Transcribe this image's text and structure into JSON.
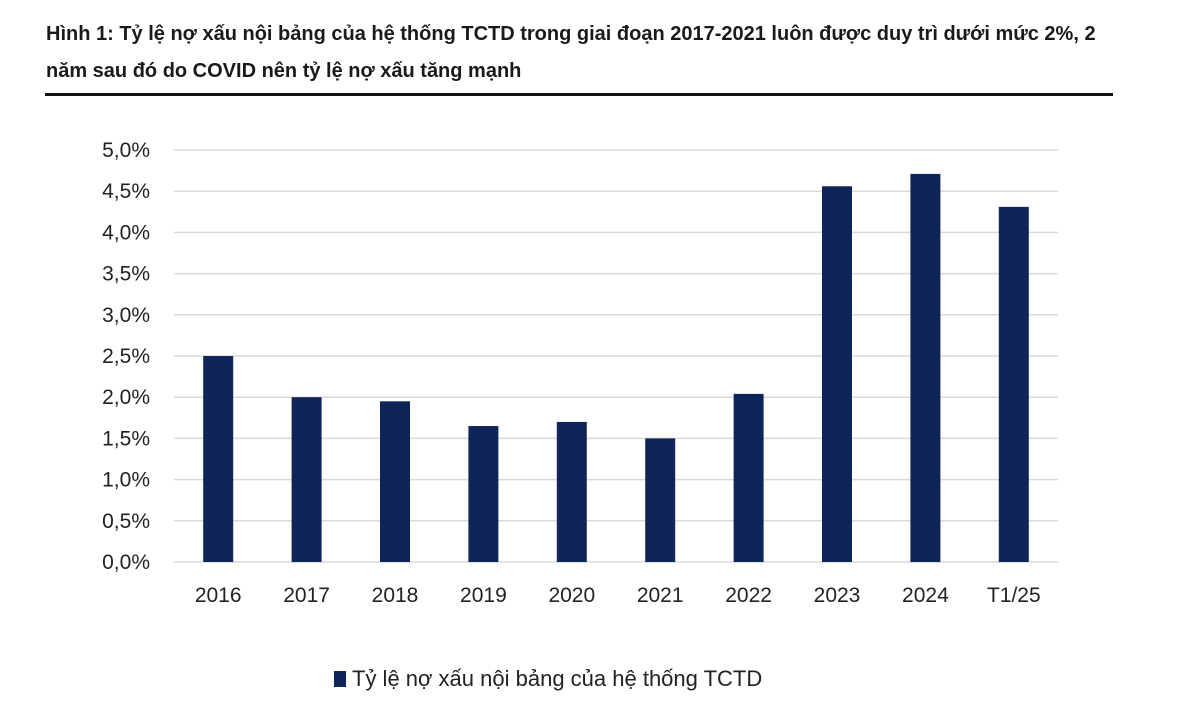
{
  "figure": {
    "title": "Hình 1:  Tỷ lệ nợ xấu nội bảng của hệ thống TCTD trong giai đoạn 2017-2021 luôn được duy trì dưới mức 2%, 2 năm sau đó do COVID nên tỷ lệ nợ xấu tăng mạnh"
  },
  "chart_data": {
    "type": "bar",
    "categories": [
      "2016",
      "2017",
      "2018",
      "2019",
      "2020",
      "2021",
      "2022",
      "2023",
      "2024",
      "T1/25"
    ],
    "series": [
      {
        "name": "Tỷ lệ nợ xấu nội bảng của hệ thống TCTD",
        "values": [
          2.5,
          2.0,
          1.95,
          1.65,
          1.7,
          1.5,
          2.04,
          4.56,
          4.71,
          4.31
        ],
        "color": "#0f2557"
      }
    ],
    "ylim": [
      0,
      5
    ],
    "yticks": [
      0,
      0.5,
      1,
      1.5,
      2,
      2.5,
      3,
      3.5,
      4,
      4.5,
      5
    ],
    "ytick_labels": [
      "0,0%",
      "0,5%",
      "1,0%",
      "1,5%",
      "2,0%",
      "2,5%",
      "3,0%",
      "3,5%",
      "4,0%",
      "4,5%",
      "5,0%"
    ],
    "unit": "%",
    "grid": true,
    "legend_position": "bottom"
  }
}
